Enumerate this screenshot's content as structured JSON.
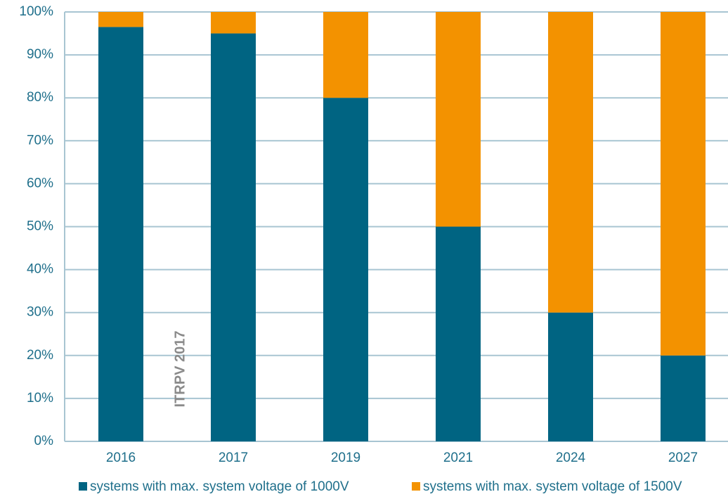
{
  "chart_data": {
    "type": "stacked_bar",
    "annotation": "ITRPV 2017",
    "categories": [
      "2016",
      "2017",
      "2019",
      "2021",
      "2024",
      "2027"
    ],
    "series": [
      {
        "name": "systems with max. system voltage of 1000V",
        "color": "#006482",
        "values": [
          96.5,
          95,
          80,
          50,
          30,
          20
        ]
      },
      {
        "name": "systems with max. system voltage of 1500V",
        "color": "#f39200",
        "values": [
          3.5,
          5,
          20,
          50,
          70,
          80
        ]
      }
    ],
    "ylim": [
      0,
      100
    ],
    "yticks": [
      {
        "value": 0,
        "label": "0%"
      },
      {
        "value": 10,
        "label": "10%"
      },
      {
        "value": 20,
        "label": "20%"
      },
      {
        "value": 30,
        "label": "30%"
      },
      {
        "value": 40,
        "label": "40%"
      },
      {
        "value": 50,
        "label": "50%"
      },
      {
        "value": 60,
        "label": "60%"
      },
      {
        "value": 70,
        "label": "70%"
      },
      {
        "value": 80,
        "label": "80%"
      },
      {
        "value": 90,
        "label": "90%"
      },
      {
        "value": 100,
        "label": "100%"
      }
    ],
    "grid": true
  }
}
